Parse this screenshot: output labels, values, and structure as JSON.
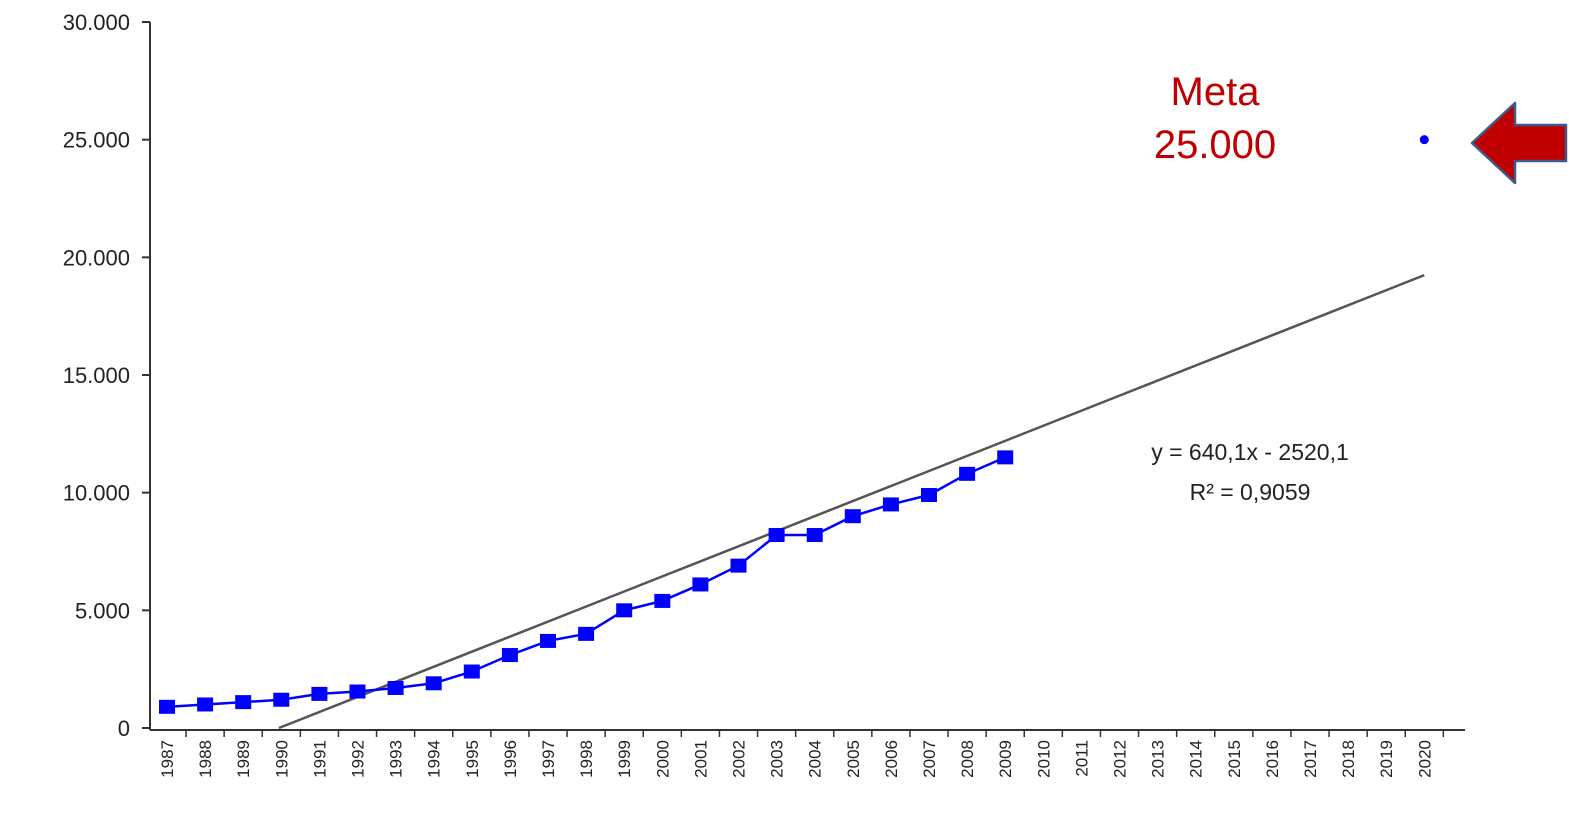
{
  "chart_data": {
    "type": "line",
    "x_categories": [
      "1987",
      "1988",
      "1989",
      "1990",
      "1991",
      "1992",
      "1993",
      "1994",
      "1995",
      "1996",
      "1997",
      "1998",
      "1999",
      "2000",
      "2001",
      "2002",
      "2003",
      "2004",
      "2005",
      "2006",
      "2007",
      "2008",
      "2009",
      "2010",
      "2011",
      "2012",
      "2013",
      "2014",
      "2015",
      "2016",
      "2017",
      "2018",
      "2019",
      "2020"
    ],
    "y_ticks": [
      "0",
      "5.000",
      "10.000",
      "15.000",
      "20.000",
      "25.000",
      "30.000"
    ],
    "y_tick_values": [
      0,
      5000,
      10000,
      15000,
      20000,
      25000,
      30000
    ],
    "ylim": [
      0,
      30000
    ],
    "grid": false,
    "series": [
      {
        "color": "#0000ff",
        "marker": "square",
        "values": [
          900,
          1000,
          1100,
          1200,
          1450,
          1550,
          1700,
          1900,
          2400,
          3100,
          3700,
          4000,
          5000,
          5400,
          6100,
          6900,
          8200,
          8200,
          9000,
          9500,
          9900,
          10800,
          11500
        ]
      }
    ],
    "trendline": {
      "color": "#555555",
      "slope": 640.1,
      "intercept": -2520.1,
      "equation": "y = 640,1x - 2520,1",
      "r2_label": "R² = 0,9059"
    },
    "target_point": {
      "year": "2020",
      "value": 25000,
      "label_line1": "Meta",
      "label_line2": "25.000",
      "marker_color": "#0000ff",
      "arrow_color": "#c00000"
    }
  }
}
